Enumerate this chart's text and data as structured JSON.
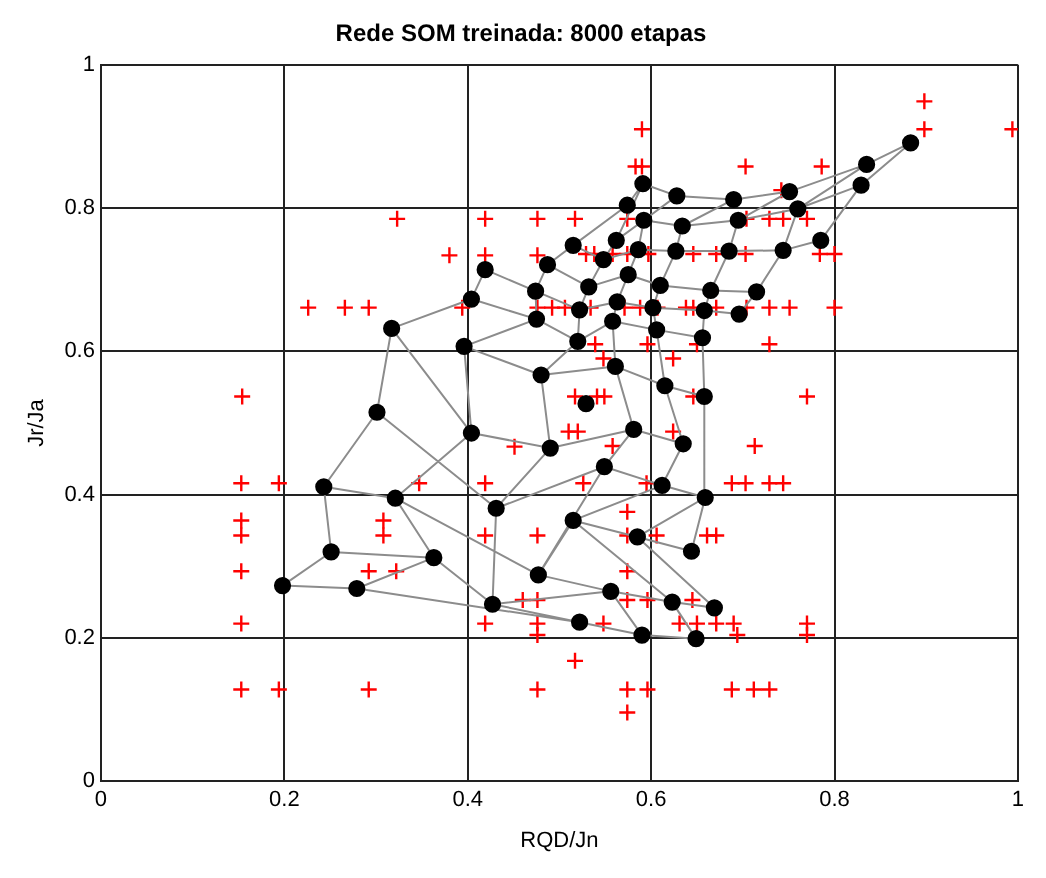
{
  "chart_data": {
    "type": "scatter",
    "title": "Rede SOM treinada: 8000 etapas",
    "xlabel": "RQD/Jn",
    "ylabel": "Jr/Ja",
    "xlim": [
      0,
      1
    ],
    "ylim": [
      0,
      1
    ],
    "xticks": [
      0,
      0.2,
      0.4,
      0.6,
      0.8,
      1
    ],
    "yticks": [
      0,
      0.2,
      0.4,
      0.6,
      0.8,
      1
    ],
    "grid": true,
    "legend": false,
    "series": [
      {
        "type": "scatter",
        "marker": "cross",
        "color": "#ff0000",
        "x": [
          0.323,
          0.419,
          0.476,
          0.38,
          0.419,
          0.476,
          0.226,
          0.266,
          0.292,
          0.394,
          0.476,
          0.492,
          0.154,
          0.898,
          0.898,
          0.994,
          0.59,
          0.583,
          0.59,
          0.703,
          0.786,
          0.742,
          0.517,
          0.574,
          0.704,
          0.729,
          0.744,
          0.77,
          0.529,
          0.538,
          0.558,
          0.574,
          0.597,
          0.646,
          0.671,
          0.703,
          0.784,
          0.8,
          0.506,
          0.534,
          0.571,
          0.588,
          0.607,
          0.638,
          0.646,
          0.671,
          0.704,
          0.729,
          0.751,
          0.8,
          0.539,
          0.596,
          0.65,
          0.729,
          0.548,
          0.624,
          0.517,
          0.541,
          0.549,
          0.646,
          0.77,
          0.153,
          0.194,
          0.347,
          0.419,
          0.451,
          0.153,
          0.153,
          0.308,
          0.308,
          0.419,
          0.476,
          0.153,
          0.292,
          0.322,
          0.46,
          0.476,
          0.153,
          0.419,
          0.476,
          0.476,
          0.153,
          0.194,
          0.292,
          0.476,
          0.51,
          0.52,
          0.624,
          0.558,
          0.713,
          0.526,
          0.595,
          0.688,
          0.703,
          0.729,
          0.744,
          0.574,
          0.574,
          0.606,
          0.661,
          0.671,
          0.574,
          0.574,
          0.596,
          0.645,
          0.548,
          0.631,
          0.65,
          0.671,
          0.69,
          0.694,
          0.77,
          0.77,
          0.517,
          0.574,
          0.596,
          0.688,
          0.712,
          0.729,
          0.574
        ],
        "values": [
          0.785,
          0.785,
          0.785,
          0.734,
          0.734,
          0.734,
          0.661,
          0.661,
          0.661,
          0.661,
          0.661,
          0.661,
          0.537,
          0.949,
          0.91,
          0.91,
          0.91,
          0.858,
          0.858,
          0.858,
          0.858,
          0.825,
          0.785,
          0.785,
          0.785,
          0.785,
          0.785,
          0.785,
          0.736,
          0.736,
          0.736,
          0.736,
          0.736,
          0.736,
          0.736,
          0.736,
          0.736,
          0.736,
          0.661,
          0.661,
          0.661,
          0.661,
          0.661,
          0.661,
          0.661,
          0.661,
          0.661,
          0.661,
          0.661,
          0.661,
          0.61,
          0.61,
          0.61,
          0.61,
          0.59,
          0.59,
          0.537,
          0.537,
          0.537,
          0.537,
          0.537,
          0.416,
          0.416,
          0.416,
          0.416,
          0.467,
          0.364,
          0.343,
          0.364,
          0.343,
          0.343,
          0.343,
          0.293,
          0.293,
          0.293,
          0.253,
          0.253,
          0.22,
          0.22,
          0.22,
          0.204,
          0.128,
          0.128,
          0.128,
          0.128,
          0.488,
          0.488,
          0.488,
          0.468,
          0.468,
          0.416,
          0.416,
          0.416,
          0.416,
          0.416,
          0.416,
          0.376,
          0.343,
          0.343,
          0.343,
          0.343,
          0.293,
          0.253,
          0.253,
          0.253,
          0.22,
          0.22,
          0.22,
          0.22,
          0.22,
          0.204,
          0.22,
          0.204,
          0.168,
          0.128,
          0.128,
          0.128,
          0.128,
          0.128,
          0.096
        ]
      },
      {
        "type": "line",
        "marker": "none",
        "color": "#8c8c8c",
        "x": [
          0.198,
          0.279,
          0.522,
          0.59,
          0.649,
          null,
          0.251,
          0.363,
          0.427,
          0.556,
          0.623,
          0.669,
          null,
          0.243,
          0.321,
          0.477,
          0.515,
          0.585,
          0.644,
          null,
          0.301,
          0.431,
          0.549,
          0.612,
          0.659,
          null,
          0.317,
          0.404,
          0.49,
          0.581,
          0.635,
          null,
          0.396,
          0.48,
          0.561,
          0.615,
          0.658,
          null,
          0.404,
          0.475,
          0.52,
          0.558,
          0.606,
          0.656,
          null,
          0.419,
          0.474,
          0.522,
          0.563,
          0.602,
          0.658,
          0.696,
          null,
          0.487,
          0.532,
          0.575,
          0.61,
          0.665,
          0.715,
          null,
          0.515,
          0.548,
          0.586,
          0.627,
          0.685,
          0.744,
          0.785,
          null,
          0.562,
          0.592,
          0.634,
          0.695,
          0.76,
          0.829,
          null,
          0.574,
          0.591,
          0.628,
          0.69,
          0.751,
          0.835,
          0.883,
          null,
          0.198,
          0.251,
          0.243,
          0.301,
          0.317,
          0.404,
          0.419,
          null,
          0.279,
          0.363,
          0.321,
          0.404,
          0.396,
          0.475,
          0.474,
          0.487,
          0.515,
          0.574,
          null,
          0.522,
          0.427,
          0.431,
          0.49,
          0.48,
          0.52,
          0.522,
          0.532,
          0.548,
          0.562,
          0.591,
          null,
          0.59,
          0.556,
          0.477,
          0.549,
          0.581,
          0.561,
          0.558,
          0.563,
          0.575,
          0.586,
          0.592,
          0.628,
          null,
          0.649,
          0.623,
          0.515,
          0.612,
          0.635,
          0.615,
          0.606,
          0.602,
          0.61,
          0.627,
          0.634,
          0.69,
          null,
          0.669,
          0.585,
          0.659,
          0.658,
          0.656,
          0.658,
          0.665,
          0.685,
          0.695,
          0.751,
          null,
          0.644,
          0.659,
          null,
          0.696,
          0.715,
          0.744,
          0.76,
          0.835,
          null,
          0.785,
          0.829,
          0.883
        ],
        "values": [
          0.273,
          0.269,
          0.222,
          0.204,
          0.199,
          null,
          0.32,
          0.312,
          0.247,
          0.265,
          0.25,
          0.242,
          null,
          0.411,
          0.395,
          0.288,
          0.364,
          0.341,
          0.321,
          null,
          0.515,
          0.381,
          0.439,
          0.413,
          0.396,
          null,
          0.632,
          0.486,
          0.465,
          0.491,
          0.471,
          null,
          0.607,
          0.567,
          0.579,
          0.552,
          0.537,
          null,
          0.673,
          0.645,
          0.614,
          0.642,
          0.63,
          0.619,
          null,
          0.714,
          0.684,
          0.658,
          0.669,
          0.661,
          0.657,
          0.652,
          null,
          0.721,
          0.69,
          0.707,
          0.692,
          0.685,
          0.683,
          null,
          0.748,
          0.728,
          0.742,
          0.74,
          0.74,
          0.741,
          0.755,
          null,
          0.755,
          0.783,
          0.775,
          0.783,
          0.799,
          0.832,
          null,
          0.804,
          0.834,
          0.817,
          0.812,
          0.823,
          0.861,
          0.891,
          null,
          0.273,
          0.32,
          0.411,
          0.515,
          0.632,
          0.673,
          0.714,
          null,
          0.269,
          0.312,
          0.395,
          0.486,
          0.607,
          0.645,
          0.684,
          0.721,
          0.748,
          0.804,
          null,
          0.222,
          0.247,
          0.381,
          0.465,
          0.567,
          0.614,
          0.658,
          0.69,
          0.728,
          0.755,
          0.834,
          null,
          0.204,
          0.265,
          0.288,
          0.439,
          0.491,
          0.579,
          0.642,
          0.669,
          0.707,
          0.742,
          0.783,
          0.817,
          null,
          0.199,
          0.25,
          0.364,
          0.413,
          0.471,
          0.552,
          0.63,
          0.661,
          0.692,
          0.74,
          0.775,
          0.812,
          null,
          0.242,
          0.341,
          0.396,
          0.537,
          0.619,
          0.657,
          0.685,
          0.74,
          0.783,
          0.823,
          null,
          0.321,
          0.396,
          null,
          0.652,
          0.683,
          0.741,
          0.799,
          0.861,
          null,
          0.755,
          0.832,
          0.891
        ]
      },
      {
        "type": "scatter",
        "marker": "circle",
        "color": "#000000",
        "x": [
          0.883,
          0.835,
          0.829,
          0.751,
          0.76,
          0.69,
          0.628,
          0.591,
          0.574,
          0.592,
          0.634,
          0.695,
          0.785,
          0.744,
          0.685,
          0.627,
          0.586,
          0.562,
          0.548,
          0.515,
          0.575,
          0.532,
          0.61,
          0.665,
          0.715,
          0.563,
          0.522,
          0.602,
          0.658,
          0.696,
          0.558,
          0.606,
          0.656,
          0.52,
          0.561,
          0.615,
          0.658,
          0.529,
          0.581,
          0.419,
          0.487,
          0.474,
          0.404,
          0.475,
          0.317,
          0.396,
          0.48,
          0.301,
          0.404,
          0.49,
          0.243,
          0.321,
          0.431,
          0.251,
          0.363,
          0.477,
          0.198,
          0.279,
          0.427,
          0.635,
          0.549,
          0.612,
          0.659,
          0.515,
          0.585,
          0.644,
          0.556,
          0.623,
          0.669,
          0.522,
          0.59,
          0.649
        ],
        "values": [
          0.891,
          0.861,
          0.832,
          0.823,
          0.799,
          0.812,
          0.817,
          0.834,
          0.804,
          0.783,
          0.775,
          0.783,
          0.755,
          0.741,
          0.74,
          0.74,
          0.742,
          0.755,
          0.728,
          0.748,
          0.707,
          0.69,
          0.692,
          0.685,
          0.683,
          0.669,
          0.658,
          0.661,
          0.657,
          0.652,
          0.642,
          0.63,
          0.619,
          0.614,
          0.579,
          0.552,
          0.537,
          0.527,
          0.491,
          0.714,
          0.721,
          0.684,
          0.673,
          0.645,
          0.632,
          0.607,
          0.567,
          0.515,
          0.486,
          0.465,
          0.411,
          0.395,
          0.381,
          0.32,
          0.312,
          0.288,
          0.273,
          0.269,
          0.247,
          0.471,
          0.439,
          0.413,
          0.396,
          0.364,
          0.341,
          0.321,
          0.265,
          0.25,
          0.242,
          0.222,
          0.204,
          0.199
        ]
      }
    ]
  }
}
